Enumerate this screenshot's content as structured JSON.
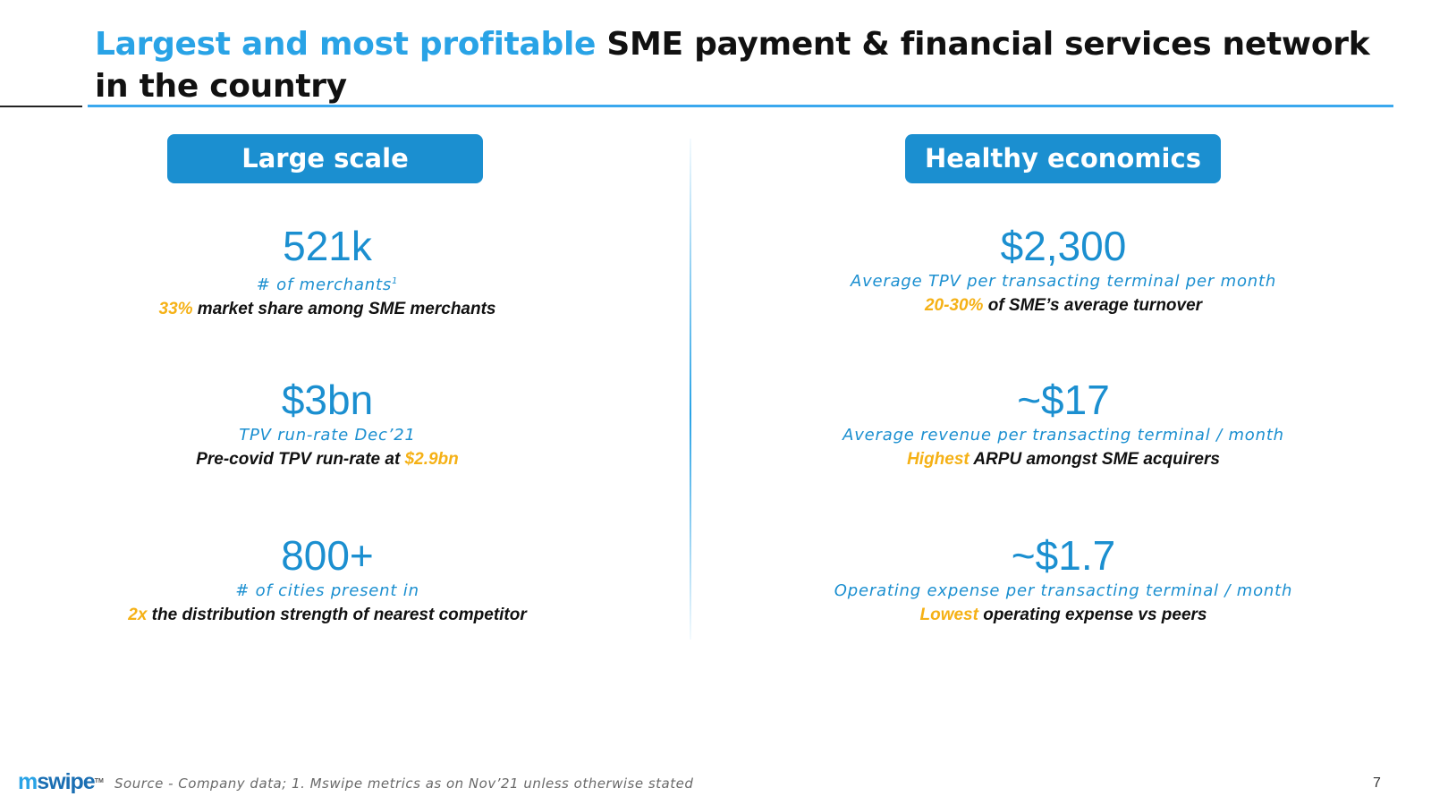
{
  "title": {
    "highlight": "Largest and most profitable",
    "rest": " SME payment & financial services network in the country"
  },
  "left": {
    "header": "Large scale",
    "metrics": [
      {
        "value": "521k",
        "label": "# of merchants",
        "sup": "1",
        "note_accent": "33%",
        "note_text": " market share among SME merchants"
      },
      {
        "value": "$3bn",
        "label": "TPV run-rate Dec’21",
        "note_text": "Pre-covid TPV run-rate at ",
        "note_accent": "$2.9bn"
      },
      {
        "value": "800+",
        "label": "# of cities present in",
        "note_accent": "2x",
        "note_text": " the distribution strength of nearest competitor"
      }
    ]
  },
  "right": {
    "header": "Healthy economics",
    "metrics": [
      {
        "value": "$2,300",
        "label": "Average TPV per transacting terminal per month",
        "note_accent": "20-30%",
        "note_text": " of SME’s average turnover"
      },
      {
        "value": "~$17",
        "label": "Average revenue per transacting terminal / month",
        "note_accent": "Highest",
        "note_text": " ARPU amongst SME acquirers"
      },
      {
        "value": "~$1.7",
        "label": "Operating expense per transacting terminal / month",
        "note_accent": "Lowest",
        "note_text": " operating expense vs peers"
      }
    ]
  },
  "footer": {
    "logo_m": "m",
    "logo_rest": "swipe",
    "logo_tm": "TM",
    "source": "Source - Company data; 1. Mswipe metrics as on Nov’21 unless otherwise stated",
    "page_number": "7"
  },
  "colors": {
    "accent_blue": "#1b8fd0",
    "title_blue": "#29a3e6",
    "accent_yellow": "#f5b116"
  }
}
